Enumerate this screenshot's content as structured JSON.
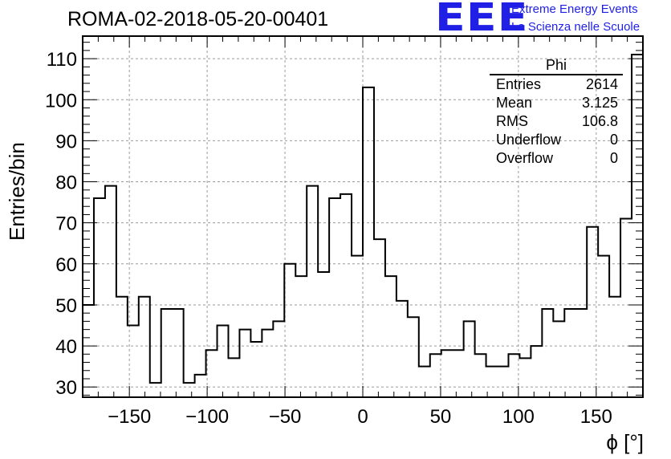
{
  "header": {
    "run_title": "ROMA-02-2018-05-20-00401",
    "logo_text": "EEE",
    "org_line1": "Extreme Energy Events",
    "org_line2": "La Scienza nelle Scuole",
    "logo_color": "#1f1fe6"
  },
  "stats_box": {
    "title": "Phi",
    "rows": [
      {
        "label": "Entries",
        "value": "2614"
      },
      {
        "label": "Mean",
        "value": "3.125"
      },
      {
        "label": "RMS",
        "value": "106.8"
      },
      {
        "label": "Underflow",
        "value": "0"
      },
      {
        "label": "Overflow",
        "value": "0"
      }
    ]
  },
  "chart_data": {
    "type": "bar",
    "histogram": "step",
    "bin_edges_start": -180,
    "bin_width": 7.2,
    "values": [
      50,
      76,
      79,
      52,
      45,
      52,
      31,
      49,
      49,
      31,
      33,
      39,
      45,
      37,
      44,
      41,
      44,
      46,
      60,
      57,
      79,
      58,
      76,
      77,
      62,
      103,
      66,
      57,
      51,
      47,
      35,
      38,
      39,
      39,
      46,
      38,
      35,
      35,
      38,
      37,
      40,
      49,
      46,
      49,
      49,
      69,
      62,
      52,
      71,
      111
    ],
    "xlabel": "ϕ [°]",
    "ylabel": "Entries/bin",
    "xlim": [
      -180,
      180
    ],
    "ylim": [
      27.5,
      115.5
    ],
    "x_ticks": [
      -150,
      -100,
      -50,
      0,
      50,
      100,
      150
    ],
    "x_tick_labels": [
      "−150",
      "−100",
      "−50",
      "0",
      "50",
      "100",
      "150"
    ],
    "y_ticks": [
      30,
      40,
      50,
      60,
      70,
      80,
      90,
      100,
      110
    ],
    "y_tick_labels": [
      "30",
      "40",
      "50",
      "60",
      "70",
      "80",
      "90",
      "100",
      "110"
    ],
    "grid": true
  }
}
